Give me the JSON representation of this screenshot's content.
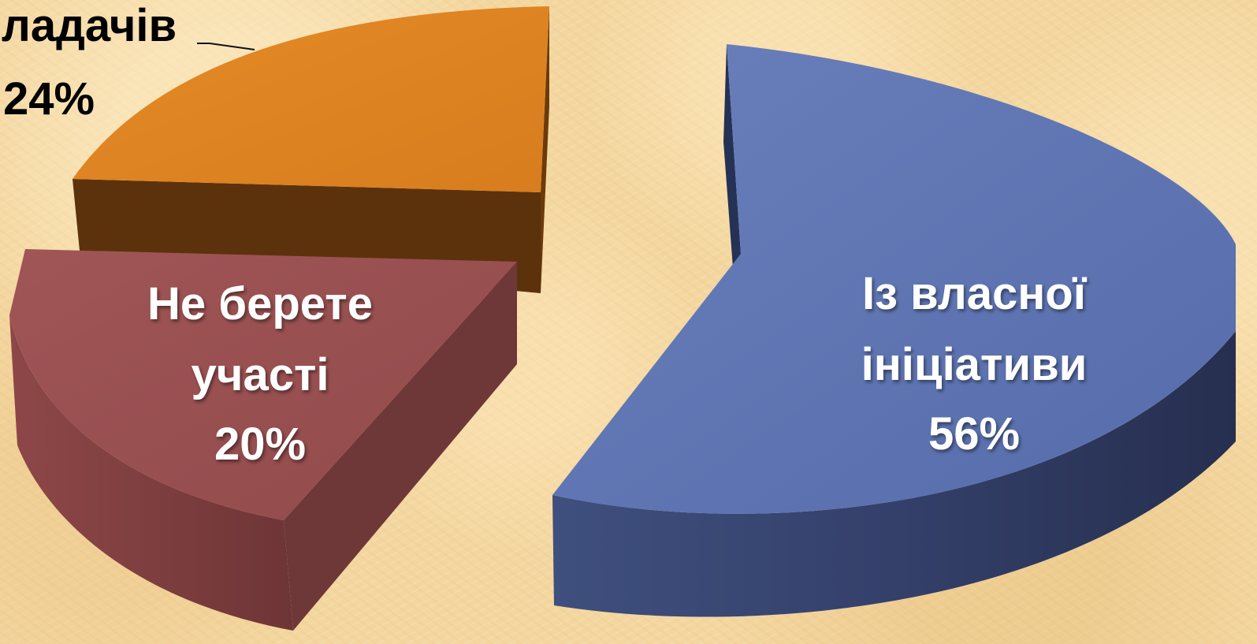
{
  "chart_data": {
    "type": "pie",
    "title": "",
    "style": "3d-exploded",
    "legend": "none",
    "slices": [
      {
        "label": "Із власної ініціативи",
        "value": 56,
        "value_label": "56%",
        "color": "#5f76b2"
      },
      {
        "label": "...ладачів",
        "value": 24,
        "value_label": "24%",
        "color": "#e08422"
      },
      {
        "label": "Не берете участі",
        "value": 20,
        "value_label": "20%",
        "color": "#9a4f4f"
      }
    ]
  },
  "labels": {
    "blue_line1": "Із власної",
    "blue_line2": "ініціативи",
    "blue_value": "56%",
    "orange_line1": "ладачів",
    "orange_value": "24%",
    "red_line1": "Не берете",
    "red_line2": "участі",
    "red_value": "20%"
  }
}
